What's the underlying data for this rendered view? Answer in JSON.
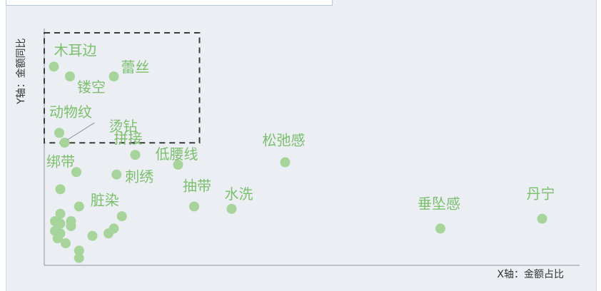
{
  "chart_data": {
    "type": "scatter",
    "xlabel": "X轴：金额占比",
    "ylabel": "Y轴：金额同比",
    "xlim": [
      0,
      1
    ],
    "ylim": [
      0,
      1
    ],
    "grid": false,
    "colors": {
      "point": "#a6d49b",
      "label": "#7cbf6e",
      "axis": "#b0b4ba",
      "highlight_box": "#3a3a3a"
    },
    "highlight_region": {
      "x": [
        0,
        0.29
      ],
      "y": [
        0.54,
        1.0
      ]
    },
    "points": [
      {
        "label": "木耳边",
        "x": 0.018,
        "y": 0.81
      },
      {
        "label": "镂空",
        "x": 0.048,
        "y": 0.77
      },
      {
        "label": "蕾丝",
        "x": 0.13,
        "y": 0.77
      },
      {
        "label": "动物纹",
        "x": 0.028,
        "y": 0.54
      },
      {
        "label": "烫钻",
        "x": 0.038,
        "y": 0.5
      },
      {
        "label": "拼接",
        "x": 0.17,
        "y": 0.45
      },
      {
        "label": "低腰线",
        "x": 0.25,
        "y": 0.41
      },
      {
        "label": "松弛感",
        "x": 0.45,
        "y": 0.42
      },
      {
        "label": "绑带",
        "x": 0.06,
        "y": 0.38
      },
      {
        "label": "刺绣",
        "x": 0.135,
        "y": 0.37
      },
      {
        "label": "抽带",
        "x": 0.28,
        "y": 0.24
      },
      {
        "label": "水洗",
        "x": 0.35,
        "y": 0.23
      },
      {
        "label": "脏染",
        "x": 0.065,
        "y": 0.24
      },
      {
        "label": "垂坠感",
        "x": 0.74,
        "y": 0.15
      },
      {
        "label": "丹宁",
        "x": 0.93,
        "y": 0.19
      },
      {
        "label": "",
        "x": 0.03,
        "y": 0.31
      },
      {
        "label": "",
        "x": 0.03,
        "y": 0.21
      },
      {
        "label": "",
        "x": 0.02,
        "y": 0.18
      },
      {
        "label": "",
        "x": 0.03,
        "y": 0.17
      },
      {
        "label": "",
        "x": 0.05,
        "y": 0.18
      },
      {
        "label": "",
        "x": 0.05,
        "y": 0.16
      },
      {
        "label": "",
        "x": 0.02,
        "y": 0.14
      },
      {
        "label": "",
        "x": 0.03,
        "y": 0.13
      },
      {
        "label": "",
        "x": 0.025,
        "y": 0.11
      },
      {
        "label": "",
        "x": 0.04,
        "y": 0.09
      },
      {
        "label": "",
        "x": 0.065,
        "y": 0.06
      },
      {
        "label": "",
        "x": 0.065,
        "y": 0.03
      },
      {
        "label": "",
        "x": 0.09,
        "y": 0.12
      },
      {
        "label": "",
        "x": 0.12,
        "y": 0.13
      },
      {
        "label": "",
        "x": 0.13,
        "y": 0.15
      },
      {
        "label": "",
        "x": 0.145,
        "y": 0.2
      }
    ]
  }
}
